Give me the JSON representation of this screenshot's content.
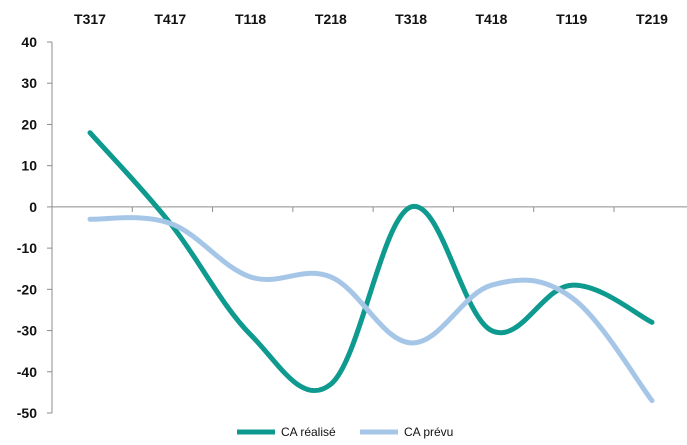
{
  "chart_data": {
    "type": "line",
    "title": "",
    "xlabel": "",
    "ylabel": "",
    "categories": [
      "T317",
      "T417",
      "T118",
      "T218",
      "T318",
      "T418",
      "T119",
      "T219"
    ],
    "ylim": [
      -50,
      40
    ],
    "yticks": [
      40,
      30,
      20,
      10,
      0,
      -10,
      -20,
      -30,
      -40,
      -50
    ],
    "x_axis_position": "top",
    "grid": false,
    "legend_position": "bottom-center",
    "series": [
      {
        "name": "CA réalisé",
        "color": "#0e9a8e",
        "values": [
          18,
          -4,
          -31,
          -43,
          0,
          -30,
          -19,
          -28
        ]
      },
      {
        "name": "CA prévu",
        "color": "#a6c6e8",
        "values": [
          -3,
          -4,
          -17,
          -17,
          -33,
          -19,
          -22,
          -47
        ]
      }
    ]
  }
}
